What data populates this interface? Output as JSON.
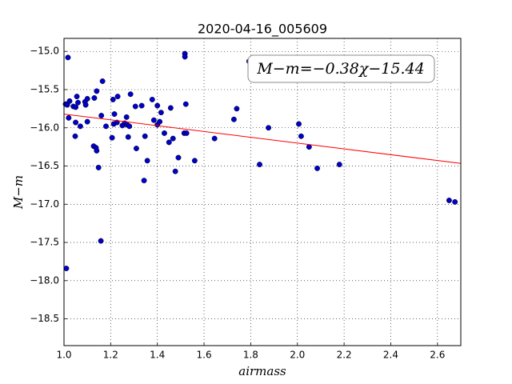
{
  "chart_data": {
    "type": "scatter",
    "title": "2020-04-16_005609",
    "x_label": "airmass",
    "y_label": "M−m",
    "annotation": "M−m=−0.38χ−15.44",
    "color": "#0000cc",
    "x": [
      1.01,
      1.017,
      1.007,
      1.014,
      1.024,
      1.02,
      1.04,
      1.05,
      1.055,
      1.048,
      1.05,
      1.06,
      1.07,
      1.09,
      1.093,
      1.1,
      1.1,
      1.13,
      1.14,
      1.127,
      1.137,
      1.14,
      1.148,
      1.158,
      1.165,
      1.16,
      1.18,
      1.206,
      1.21,
      1.216,
      1.213,
      1.227,
      1.23,
      1.25,
      1.26,
      1.268,
      1.27,
      1.275,
      1.28,
      1.285,
      1.306,
      1.31,
      1.333,
      1.343,
      1.347,
      1.357,
      1.378,
      1.385,
      1.4,
      1.4,
      1.41,
      1.416,
      1.43,
      1.45,
      1.457,
      1.467,
      1.477,
      1.49,
      1.518,
      1.518,
      1.515,
      1.522,
      1.525,
      1.56,
      1.645,
      1.728,
      1.74,
      1.793,
      1.838,
      1.876,
      2.006,
      2.016,
      2.05,
      2.085,
      2.18,
      2.65,
      2.675
    ],
    "values": [
      -17.84,
      -15.08,
      -15.69,
      -15.7,
      -15.65,
      -15.87,
      -15.72,
      -15.73,
      -15.59,
      -16.11,
      -15.93,
      -15.67,
      -15.98,
      -15.66,
      -15.7,
      -15.62,
      -15.92,
      -15.61,
      -15.52,
      -16.24,
      -16.26,
      -16.3,
      -16.52,
      -17.48,
      -15.39,
      -15.84,
      -15.98,
      -16.13,
      -15.63,
      -15.82,
      -15.95,
      -15.93,
      -15.59,
      -15.97,
      -15.94,
      -15.86,
      -15.96,
      -16.12,
      -15.98,
      -15.56,
      -15.72,
      -16.27,
      -15.71,
      -16.69,
      -16.11,
      -16.43,
      -15.63,
      -15.9,
      -15.71,
      -15.96,
      -15.92,
      -15.8,
      -16.07,
      -16.19,
      -15.74,
      -16.14,
      -16.57,
      -16.39,
      -15.03,
      -15.07,
      -16.07,
      -15.69,
      -16.07,
      -16.43,
      -16.14,
      -15.89,
      -15.75,
      -15.13,
      -16.48,
      -16.0,
      -15.95,
      -16.11,
      -16.25,
      -16.53,
      -16.48,
      -16.95,
      -16.97
    ],
    "fit_line": {
      "x": [
        1.0,
        2.7
      ],
      "values": [
        -15.82,
        -16.466
      ],
      "color": "#ff0000"
    },
    "xlim": [
      1.0,
      2.7
    ],
    "ylim": [
      -18.85,
      -14.83
    ],
    "xticks": [
      {
        "value": 1.0,
        "label": "1.0"
      },
      1.2,
      1.4,
      1.6,
      1.8,
      {
        "value": 2.0,
        "label": "2.0"
      },
      2.2,
      2.4,
      2.6
    ],
    "yticks": [
      {
        "value": -15.0,
        "label": "−15.0"
      },
      {
        "value": -15.5,
        "label": "−15.5"
      },
      {
        "value": -16.0,
        "label": "−16.0"
      },
      {
        "value": -16.5,
        "label": "−16.5"
      },
      {
        "value": -17.0,
        "label": "−17.0"
      },
      {
        "value": -17.5,
        "label": "−17.5"
      },
      {
        "value": -18.0,
        "label": "−18.0"
      },
      {
        "value": -18.5,
        "label": "−18.5"
      }
    ],
    "grid": true
  }
}
